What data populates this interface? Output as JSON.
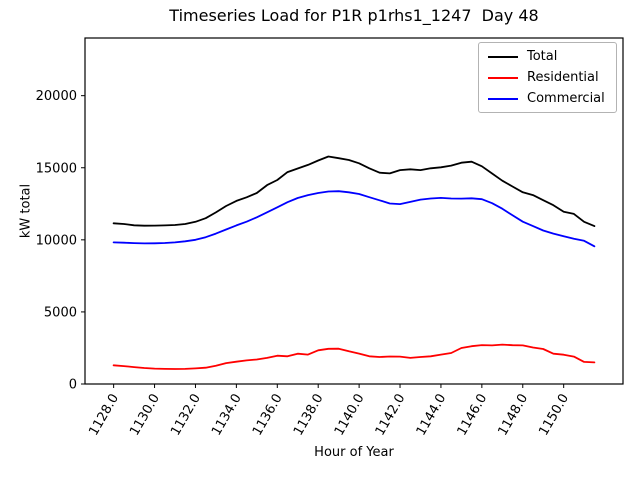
{
  "chart_data": {
    "type": "line",
    "title": "Timeseries Load for P1R p1rhs1_1247  Day 48",
    "xlabel": "Hour of Year",
    "ylabel": "kW total",
    "xlim": [
      1126.6,
      1152.9
    ],
    "ylim": [
      0,
      24000
    ],
    "grid": false,
    "legend_position": "upper right",
    "xtick_values": [
      1128,
      1130,
      1132,
      1134,
      1136,
      1138,
      1140,
      1142,
      1144,
      1146,
      1148,
      1150
    ],
    "xtick_labels": [
      "1128.0",
      "1130.0",
      "1132.0",
      "1134.0",
      "1136.0",
      "1138.0",
      "1140.0",
      "1142.0",
      "1144.0",
      "1146.0",
      "1148.0",
      "1150.0"
    ],
    "ytick_values": [
      0,
      5000,
      10000,
      15000,
      20000
    ],
    "ytick_labels": [
      "0",
      "5000",
      "10000",
      "15000",
      "20000"
    ],
    "x": [
      1128.0,
      1128.5,
      1129.0,
      1129.5,
      1130.0,
      1130.5,
      1131.0,
      1131.5,
      1132.0,
      1132.5,
      1133.0,
      1133.5,
      1134.0,
      1134.5,
      1135.0,
      1135.5,
      1136.0,
      1136.5,
      1137.0,
      1137.5,
      1138.0,
      1138.5,
      1139.0,
      1139.5,
      1140.0,
      1140.5,
      1141.0,
      1141.5,
      1142.0,
      1142.5,
      1143.0,
      1143.5,
      1144.0,
      1144.5,
      1145.0,
      1145.5,
      1146.0,
      1146.5,
      1147.0,
      1147.5,
      1148.0,
      1148.5,
      1149.0,
      1149.5,
      1150.0,
      1150.5,
      1151.0,
      1151.5
    ],
    "series": [
      {
        "name": "Total",
        "color": "#000000",
        "values": [
          11150,
          11100,
          11010,
          10980,
          10990,
          11000,
          11030,
          11100,
          11250,
          11500,
          11900,
          12350,
          12700,
          12950,
          13250,
          13800,
          14150,
          14700,
          14950,
          15200,
          15500,
          15780,
          15660,
          15540,
          15310,
          14960,
          14660,
          14610,
          14840,
          14890,
          14840,
          14960,
          15030,
          15150,
          15350,
          15420,
          15100,
          14600,
          14100,
          13700,
          13300,
          13100,
          12750,
          12400,
          11950,
          11800,
          11250,
          10950
        ]
      },
      {
        "name": "Residential",
        "color": "#ff0000",
        "values": [
          1300,
          1240,
          1170,
          1110,
          1070,
          1050,
          1040,
          1050,
          1080,
          1130,
          1270,
          1450,
          1550,
          1640,
          1700,
          1810,
          1960,
          1920,
          2100,
          2040,
          2340,
          2440,
          2450,
          2270,
          2110,
          1920,
          1870,
          1910,
          1900,
          1810,
          1870,
          1920,
          2040,
          2150,
          2500,
          2620,
          2700,
          2680,
          2730,
          2690,
          2680,
          2530,
          2430,
          2100,
          2030,
          1900,
          1530,
          1500
        ]
      },
      {
        "name": "Commercial",
        "color": "#0000ff",
        "values": [
          9820,
          9800,
          9770,
          9750,
          9760,
          9780,
          9820,
          9900,
          10000,
          10180,
          10430,
          10720,
          11000,
          11260,
          11560,
          11910,
          12260,
          12610,
          12900,
          13100,
          13250,
          13350,
          13370,
          13300,
          13180,
          12960,
          12740,
          12520,
          12480,
          12630,
          12790,
          12870,
          12910,
          12870,
          12860,
          12880,
          12820,
          12540,
          12160,
          11700,
          11260,
          10950,
          10650,
          10430,
          10250,
          10080,
          9930,
          9550
        ]
      }
    ]
  }
}
